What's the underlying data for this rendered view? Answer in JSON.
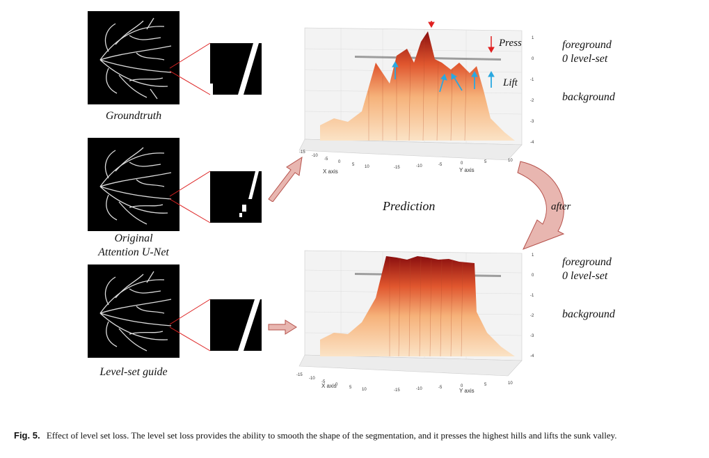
{
  "left_panels": [
    {
      "id": "groundtruth",
      "label": "Groundtruth"
    },
    {
      "id": "original",
      "label_line1": "Original",
      "label_line2": "Attention U-Net"
    },
    {
      "id": "levelset",
      "label": "Level-set guide"
    }
  ],
  "center_label": "Prediction",
  "after_label": "after",
  "top_plot": {
    "annotations": {
      "press": "Press",
      "lift": "Lift"
    },
    "side_labels": {
      "foreground": "foreground",
      "zero_level": "0 level-set",
      "background": "background"
    },
    "z_ticks": [
      "1",
      "0",
      "-1",
      "-2",
      "-3",
      "-4"
    ],
    "x_ticks": [
      "-15",
      "-10",
      "-5",
      "0",
      "5",
      "10"
    ],
    "y_ticks": [
      "-15",
      "-10",
      "-5",
      "0",
      "5",
      "10"
    ],
    "x_axis_label": "X axis",
    "y_axis_label": "Y axis"
  },
  "bottom_plot": {
    "side_labels": {
      "foreground": "foreground",
      "zero_level": "0 level-set",
      "background": "background"
    },
    "z_ticks": [
      "1",
      "0",
      "-1",
      "-2",
      "-3",
      "-4"
    ],
    "x_ticks": [
      "-15",
      "-10",
      "-5",
      "0",
      "5",
      "10"
    ],
    "y_ticks": [
      "-15",
      "-10",
      "-5",
      "0",
      "5",
      "10"
    ],
    "x_axis_label": "X axis",
    "y_axis_label": "Y axis"
  },
  "caption": {
    "fig": "Fig. 5.",
    "text": "Effect of level set loss. The level set loss provides the ability to smooth the shape of the segmentation, and it presses the highest hills and lifts the sunk valley."
  },
  "colors": {
    "arrow_fill": "#e8b6b0",
    "arrow_stroke": "#b5504a",
    "press": "#e02020",
    "lift": "#2aa8e0",
    "peak": "#8a0e0e",
    "base": "#fbe3c6"
  }
}
